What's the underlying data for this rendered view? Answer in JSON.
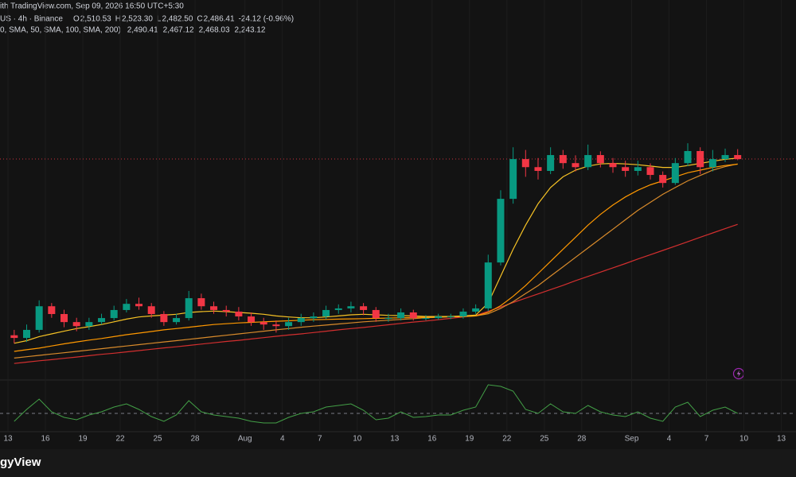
{
  "chart_data": {
    "type": "candlestick",
    "source": "ith TradingView.com, Sep 09, 2026 16:50 UTC+5:30",
    "symbol": "US · 4h · Binance",
    "ohlc": [
      {
        "key": "O",
        "value": 2510.53,
        "label": "2,510.53"
      },
      {
        "key": "H",
        "value": 2523.3,
        "label": "2,523.30"
      },
      {
        "key": "L",
        "value": 2482.5,
        "label": "2,482.50"
      },
      {
        "key": "C",
        "value": 2486.41,
        "label": "2,486.41"
      }
    ],
    "change": "-24.12 (-0.96%)",
    "indicator_label": "0, SMA, 50, SMA, 100, SMA, 200)",
    "brand": "gyView",
    "up_color": "#089981",
    "down_color": "#f23645",
    "price_line_color": "#f23645",
    "grid": true,
    "ylim": [
      1687,
      2960
    ],
    "categories": [
      "13",
      null,
      null,
      "16",
      null,
      null,
      "19",
      null,
      null,
      "22",
      null,
      null,
      "25",
      null,
      null,
      "28",
      null,
      null,
      null,
      "Aug",
      null,
      null,
      "4",
      null,
      null,
      "7",
      null,
      null,
      "10",
      null,
      null,
      "13",
      null,
      null,
      "16",
      null,
      null,
      "19",
      null,
      null,
      "22",
      null,
      null,
      "25",
      null,
      null,
      "28",
      null,
      null,
      null,
      "Sep",
      null,
      null,
      "4",
      null,
      null,
      "7",
      null,
      null,
      "10",
      null,
      null,
      "13"
    ],
    "open": [
      1830,
      1820,
      1850,
      1938,
      1909,
      1879,
      1864,
      1879,
      1894,
      1924,
      1947,
      1938,
      1909,
      1879,
      1894,
      1968,
      1938,
      1924,
      1918,
      1900,
      1879,
      1870,
      1864,
      1879,
      1894,
      1900,
      1924,
      1930,
      1938,
      1924,
      1894,
      1894,
      1915,
      1894,
      1894,
      1900,
      1900,
      1918,
      1930,
      2101,
      2338,
      2486,
      2456,
      2442,
      2501,
      2471,
      2456,
      2501,
      2471,
      2456,
      2442,
      2456,
      2427,
      2397,
      2471,
      2516,
      2456,
      2486,
      2501,
      null,
      null,
      null,
      null
    ],
    "high": [
      1850,
      1870,
      1960,
      1950,
      1925,
      1895,
      1895,
      1910,
      1940,
      1965,
      1970,
      1950,
      1920,
      1910,
      1995,
      1985,
      1955,
      1940,
      1935,
      1915,
      1895,
      1885,
      1895,
      1910,
      1915,
      1940,
      1945,
      1955,
      1950,
      1935,
      1910,
      1930,
      1925,
      1905,
      1910,
      1910,
      1930,
      1945,
      2130,
      2370,
      2530,
      2520,
      2490,
      2530,
      2520,
      2500,
      2540,
      2515,
      2490,
      2480,
      2480,
      2470,
      2440,
      2490,
      2545,
      2530,
      2520,
      2525,
      2523,
      null,
      null,
      null,
      null
    ],
    "low": [
      1800,
      1805,
      1840,
      1895,
      1860,
      1845,
      1850,
      1870,
      1885,
      1915,
      1925,
      1895,
      1865,
      1870,
      1885,
      1925,
      1910,
      1900,
      1885,
      1865,
      1850,
      1840,
      1850,
      1865,
      1880,
      1890,
      1910,
      1915,
      1905,
      1880,
      1880,
      1885,
      1885,
      1885,
      1888,
      1890,
      1892,
      1910,
      1920,
      2090,
      2320,
      2420,
      2410,
      2430,
      2450,
      2440,
      2445,
      2455,
      2435,
      2420,
      2425,
      2410,
      2380,
      2390,
      2460,
      2430,
      2440,
      2475,
      2482,
      null,
      null,
      null,
      null
    ],
    "close": [
      1820,
      1850,
      1938,
      1909,
      1879,
      1864,
      1879,
      1894,
      1924,
      1947,
      1938,
      1909,
      1879,
      1894,
      1968,
      1938,
      1924,
      1918,
      1900,
      1879,
      1870,
      1864,
      1879,
      1894,
      1900,
      1924,
      1930,
      1938,
      1924,
      1894,
      1894,
      1915,
      1894,
      1894,
      1900,
      1900,
      1918,
      1930,
      2101,
      2338,
      2486,
      2456,
      2442,
      2501,
      2471,
      2456,
      2501,
      2471,
      2456,
      2442,
      2456,
      2427,
      2397,
      2471,
      2516,
      2456,
      2486,
      2501,
      2486,
      null,
      null,
      null,
      null
    ],
    "series": [
      {
        "color": "#f7c325",
        "legend_value": {
          "value": 2490.41,
          "label": "2,490.41"
        },
        "values": [
          1800,
          1810,
          1825,
          1835,
          1845,
          1855,
          1862,
          1870,
          1880,
          1890,
          1898,
          1902,
          1905,
          1908,
          1915,
          1918,
          1920,
          1918,
          1915,
          1912,
          1908,
          1902,
          1898,
          1895,
          1895,
          1898,
          1902,
          1906,
          1908,
          1906,
          1904,
          1903,
          1902,
          1900,
          1900,
          1900,
          1902,
          1905,
          1950,
          2050,
          2150,
          2240,
          2320,
          2380,
          2420,
          2445,
          2460,
          2468,
          2470,
          2468,
          2465,
          2460,
          2455,
          2455,
          2462,
          2470,
          2478,
          2485,
          2490,
          null,
          null,
          null,
          null
        ]
      },
      {
        "color": "#ff9800",
        "legend_value": {
          "value": 2467.12,
          "label": "2,467.12"
        },
        "values": [
          1770,
          1776,
          1782,
          1790,
          1798,
          1805,
          1812,
          1818,
          1825,
          1832,
          1838,
          1844,
          1850,
          1855,
          1860,
          1865,
          1870,
          1873,
          1876,
          1878,
          1880,
          1882,
          1884,
          1886,
          1888,
          1889,
          1890,
          1891,
          1892,
          1893,
          1894,
          1895,
          1896,
          1897,
          1898,
          1899,
          1900,
          1902,
          1915,
          1940,
          1975,
          2015,
          2060,
          2105,
          2150,
          2195,
          2240,
          2280,
          2315,
          2345,
          2370,
          2390,
          2405,
          2420,
          2435,
          2445,
          2455,
          2462,
          2467,
          null,
          null,
          null,
          null
        ]
      },
      {
        "color": "#d98b2b",
        "legend_value": {
          "value": 2468.03,
          "label": "2,468.03"
        },
        "values": [
          1745,
          1750,
          1755,
          1760,
          1765,
          1770,
          1775,
          1780,
          1785,
          1790,
          1795,
          1800,
          1805,
          1810,
          1815,
          1820,
          1825,
          1830,
          1835,
          1840,
          1845,
          1850,
          1855,
          1860,
          1864,
          1868,
          1872,
          1876,
          1880,
          1883,
          1886,
          1889,
          1892,
          1895,
          1897,
          1899,
          1900,
          1902,
          1910,
          1930,
          1955,
          1985,
          2015,
          2050,
          2085,
          2120,
          2155,
          2190,
          2225,
          2260,
          2295,
          2325,
          2355,
          2380,
          2405,
          2425,
          2445,
          2458,
          2468,
          null,
          null,
          null,
          null
        ]
      },
      {
        "color": "#d32f2f",
        "legend_value": {
          "value": 2243.12,
          "label": "2,243.12"
        },
        "values": [
          1725,
          1730,
          1735,
          1739,
          1744,
          1749,
          1754,
          1759,
          1763,
          1768,
          1773,
          1778,
          1783,
          1787,
          1792,
          1797,
          1802,
          1807,
          1811,
          1816,
          1821,
          1826,
          1831,
          1835,
          1840,
          1845,
          1850,
          1855,
          1859,
          1864,
          1869,
          1874,
          1879,
          1883,
          1888,
          1893,
          1898,
          1903,
          1919,
          1935,
          1952,
          1968,
          1984,
          2000,
          2016,
          2033,
          2049,
          2065,
          2081,
          2097,
          2114,
          2130,
          2146,
          2162,
          2178,
          2195,
          2211,
          2227,
          2243,
          null,
          null,
          null,
          null
        ]
      }
    ],
    "rsi": {
      "color": "#43a047",
      "ylim": [
        0,
        100
      ],
      "level": 50,
      "values": [
        40,
        55,
        68,
        52,
        45,
        42,
        48,
        52,
        58,
        62,
        55,
        46,
        40,
        48,
        66,
        52,
        48,
        46,
        44,
        40,
        38,
        38,
        45,
        50,
        52,
        58,
        60,
        62,
        54,
        42,
        44,
        52,
        45,
        46,
        48,
        48,
        54,
        58,
        86,
        84,
        78,
        55,
        50,
        62,
        52,
        50,
        60,
        52,
        48,
        46,
        52,
        44,
        40,
        58,
        64,
        46,
        54,
        58,
        50,
        null,
        null,
        null,
        null
      ]
    }
  }
}
